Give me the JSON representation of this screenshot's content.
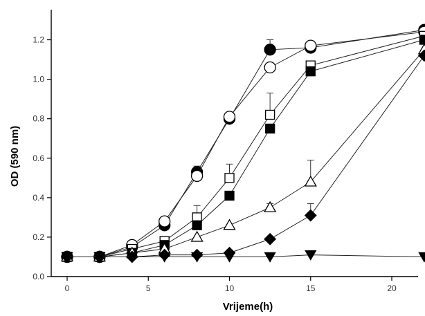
{
  "chart_data": {
    "type": "line",
    "title": "",
    "xlabel": "Vrijeme(h)",
    "ylabel": "OD (590 nm)",
    "xlim": [
      0,
      22
    ],
    "ylim": [
      0,
      1.3
    ],
    "xticks": [
      0,
      5,
      10,
      15,
      20
    ],
    "xtick_labels": [
      "0",
      "5",
      "10",
      "15",
      "20"
    ],
    "yticks": [
      0.0,
      0.2,
      0.4,
      0.6,
      0.8,
      1.0,
      1.2
    ],
    "ytick_labels": [
      "0.0",
      "0.2",
      "0.4",
      "0.6",
      "0.8",
      "1.0",
      "1.2"
    ],
    "grid": false,
    "legend": false,
    "series": [
      {
        "marker": "circle-filled",
        "x": [
          0,
          2,
          4,
          6,
          8,
          10,
          12.5,
          15,
          22
        ],
        "y": [
          0.1,
          0.1,
          0.15,
          0.26,
          0.53,
          0.8,
          1.15,
          1.16,
          1.25
        ],
        "err": [
          0,
          0,
          0,
          0.02,
          0.03,
          0,
          0.05,
          0,
          0
        ]
      },
      {
        "marker": "circle-open",
        "x": [
          0,
          2,
          4,
          6,
          8,
          10,
          12.5,
          15,
          22
        ],
        "y": [
          0.1,
          0.1,
          0.16,
          0.28,
          0.51,
          0.81,
          1.06,
          1.17,
          1.24
        ],
        "err": [
          0,
          0,
          0,
          0,
          0,
          0,
          0,
          0,
          0
        ]
      },
      {
        "marker": "square-open",
        "x": [
          0,
          2,
          4,
          6,
          8,
          10,
          12.5,
          15,
          22
        ],
        "y": [
          0.1,
          0.1,
          0.14,
          0.18,
          0.3,
          0.5,
          0.82,
          1.07,
          1.22
        ],
        "err": [
          0,
          0,
          0,
          0,
          0.06,
          0.07,
          0.11,
          0,
          0
        ]
      },
      {
        "marker": "square-filled",
        "x": [
          0,
          2,
          4,
          6,
          8,
          10,
          12.5,
          15,
          22
        ],
        "y": [
          0.1,
          0.1,
          0.12,
          0.16,
          0.26,
          0.41,
          0.75,
          1.04,
          1.2
        ],
        "err": [
          0,
          0,
          0,
          0,
          0,
          0,
          0,
          0,
          0
        ]
      },
      {
        "marker": "triangle-open",
        "x": [
          0,
          2,
          4,
          6,
          8,
          10,
          12.5,
          15,
          22
        ],
        "y": [
          0.1,
          0.1,
          0.12,
          0.14,
          0.2,
          0.26,
          0.35,
          0.48,
          1.15
        ],
        "err": [
          0,
          0,
          0,
          0,
          0,
          0,
          0.02,
          0.11,
          0
        ]
      },
      {
        "marker": "diamond-filled",
        "x": [
          0,
          2,
          4,
          6,
          8,
          10,
          12.5,
          15,
          22
        ],
        "y": [
          0.1,
          0.1,
          0.1,
          0.11,
          0.11,
          0.12,
          0.19,
          0.31,
          1.12
        ],
        "err": [
          0,
          0,
          0,
          0,
          0,
          0,
          0,
          0.06,
          0
        ]
      },
      {
        "marker": "triangle-down-filled",
        "x": [
          0,
          2,
          4,
          6,
          8,
          10,
          12.5,
          15,
          22
        ],
        "y": [
          0.1,
          0.1,
          0.1,
          0.1,
          0.1,
          0.1,
          0.1,
          0.11,
          0.1
        ],
        "err": [
          0,
          0,
          0,
          0,
          0,
          0,
          0,
          0,
          0
        ]
      }
    ]
  }
}
